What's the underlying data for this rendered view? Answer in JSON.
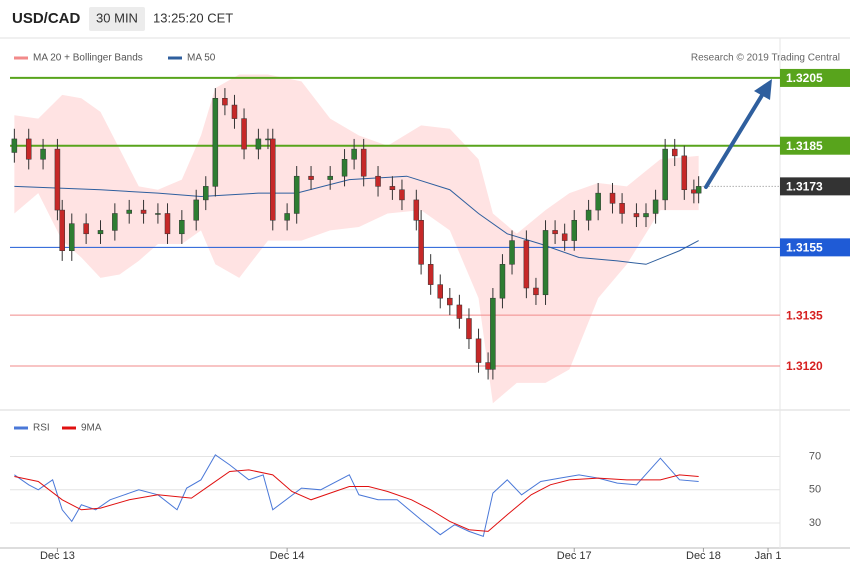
{
  "header": {
    "symbol": "USD/CAD",
    "interval": "30 MIN",
    "time": "13:25:20 CET",
    "credit": "Research © 2019 Trading Central"
  },
  "chart_data": [
    {
      "type": "candlestick",
      "xlim": [
        -3,
        160
      ],
      "ylim": [
        1.3107,
        1.3228
      ],
      "xticks": [
        {
          "value": 9,
          "label": "Dec 13"
        },
        {
          "value": 57,
          "label": "Dec 14"
        },
        {
          "value": 117,
          "label": "Dec 17"
        },
        {
          "value": 144,
          "label": "Dec 18"
        },
        {
          "value": 157.5,
          "label": "Jan 1"
        }
      ],
      "up_color": "#2e7d32",
      "down_color": "#c62828",
      "x": [
        0,
        3,
        6,
        9,
        10,
        12,
        15,
        18,
        21,
        24,
        27,
        30,
        32,
        35,
        38,
        40,
        42,
        44,
        46,
        48,
        51,
        53,
        54,
        57,
        59,
        62,
        66,
        69,
        71,
        73,
        76,
        79,
        81,
        84,
        85,
        87,
        89,
        91,
        93,
        95,
        97,
        99,
        100,
        102,
        104,
        107,
        109,
        111,
        113,
        115,
        117,
        120,
        122,
        125,
        127,
        130,
        132,
        134,
        136,
        138,
        140,
        142,
        143
      ],
      "open": [
        1.3183,
        1.3187,
        1.3181,
        1.3184,
        1.3166,
        1.3154,
        1.3162,
        1.3159,
        1.316,
        1.3165,
        1.3166,
        1.3165,
        1.3165,
        1.3159,
        1.3163,
        1.3169,
        1.3173,
        1.3199,
        1.3197,
        1.3193,
        1.3184,
        1.3187,
        1.3187,
        1.3163,
        1.3165,
        1.3176,
        1.3175,
        1.3176,
        1.3181,
        1.3184,
        1.3176,
        1.3173,
        1.3172,
        1.3169,
        1.3163,
        1.315,
        1.3144,
        1.314,
        1.3138,
        1.3134,
        1.3128,
        1.3121,
        1.3119,
        1.314,
        1.315,
        1.3157,
        1.3143,
        1.3141,
        1.316,
        1.3159,
        1.3157,
        1.3163,
        1.3166,
        1.3171,
        1.3168,
        1.3165,
        1.3164,
        1.3165,
        1.3169,
        1.3184,
        1.3182,
        1.3172,
        1.3171
      ],
      "high": [
        1.319,
        1.319,
        1.3187,
        1.3187,
        1.3169,
        1.3165,
        1.3165,
        1.3163,
        1.3168,
        1.3169,
        1.3169,
        1.3168,
        1.3168,
        1.3166,
        1.3172,
        1.3176,
        1.3202,
        1.3202,
        1.32,
        1.3196,
        1.319,
        1.319,
        1.319,
        1.3168,
        1.3179,
        1.3179,
        1.3179,
        1.3184,
        1.3187,
        1.3187,
        1.3179,
        1.3176,
        1.3175,
        1.3172,
        1.3166,
        1.3153,
        1.3147,
        1.3143,
        1.3141,
        1.3137,
        1.3131,
        1.3124,
        1.3143,
        1.3153,
        1.316,
        1.316,
        1.3146,
        1.3163,
        1.3163,
        1.3162,
        1.3166,
        1.3169,
        1.3174,
        1.3174,
        1.3171,
        1.3168,
        1.3168,
        1.3172,
        1.3187,
        1.3187,
        1.3185,
        1.3175,
        1.3176
      ],
      "low": [
        1.318,
        1.3178,
        1.3178,
        1.3163,
        1.3151,
        1.3151,
        1.3156,
        1.3156,
        1.3157,
        1.3162,
        1.3162,
        1.3162,
        1.3156,
        1.3156,
        1.316,
        1.3166,
        1.317,
        1.3194,
        1.319,
        1.3181,
        1.3181,
        1.3184,
        1.316,
        1.316,
        1.3162,
        1.3172,
        1.3172,
        1.3173,
        1.3178,
        1.3173,
        1.317,
        1.3169,
        1.3166,
        1.316,
        1.3147,
        1.3141,
        1.3137,
        1.3135,
        1.3131,
        1.3125,
        1.3118,
        1.3116,
        1.3116,
        1.3137,
        1.3147,
        1.314,
        1.3138,
        1.3138,
        1.3156,
        1.3154,
        1.3154,
        1.316,
        1.3163,
        1.3165,
        1.3162,
        1.3161,
        1.3161,
        1.3162,
        1.3166,
        1.3179,
        1.3169,
        1.3168,
        1.3168
      ],
      "close": [
        1.3187,
        1.3181,
        1.3184,
        1.3166,
        1.3154,
        1.3162,
        1.3159,
        1.316,
        1.3165,
        1.3166,
        1.3165,
        1.3165,
        1.3159,
        1.3163,
        1.3169,
        1.3173,
        1.3199,
        1.3197,
        1.3193,
        1.3184,
        1.3187,
        1.3187,
        1.3163,
        1.3165,
        1.3176,
        1.3175,
        1.3176,
        1.3181,
        1.3184,
        1.3176,
        1.3173,
        1.3172,
        1.3169,
        1.3163,
        1.315,
        1.3144,
        1.314,
        1.3138,
        1.3134,
        1.3128,
        1.3121,
        1.3119,
        1.314,
        1.315,
        1.3157,
        1.3143,
        1.3141,
        1.316,
        1.3159,
        1.3157,
        1.3163,
        1.3166,
        1.3171,
        1.3168,
        1.3165,
        1.3164,
        1.3165,
        1.3169,
        1.3184,
        1.3182,
        1.3172,
        1.3171,
        1.3173
      ],
      "bands": {
        "name": "MA 20 + Bollinger Bands",
        "color": "#f28a8a",
        "fill": "#ffe3e3",
        "x": [
          0,
          5,
          10,
          14,
          18,
          22,
          26,
          30,
          35,
          39,
          42,
          47,
          53,
          60,
          66,
          72,
          78,
          85,
          91,
          97,
          100,
          105,
          111,
          116,
          122,
          128,
          135,
          143
        ],
        "upper": [
          1.3194,
          1.3193,
          1.32,
          1.3199,
          1.3195,
          1.3184,
          1.3173,
          1.3172,
          1.3175,
          1.3188,
          1.3202,
          1.3206,
          1.3206,
          1.3204,
          1.3193,
          1.3188,
          1.3185,
          1.3191,
          1.319,
          1.3181,
          1.3165,
          1.3159,
          1.3166,
          1.3171,
          1.3174,
          1.3173,
          1.3181,
          1.3182
        ],
        "lower": [
          1.3165,
          1.3171,
          1.3157,
          1.3152,
          1.3146,
          1.3147,
          1.3151,
          1.3156,
          1.3156,
          1.316,
          1.315,
          1.3146,
          1.3157,
          1.3157,
          1.316,
          1.3161,
          1.3165,
          1.3166,
          1.316,
          1.314,
          1.3109,
          1.3115,
          1.3115,
          1.3119,
          1.314,
          1.315,
          1.3166,
          1.3166
        ]
      },
      "series": [
        {
          "name": "MA 50",
          "color": "#2f5f9e",
          "x": [
            0,
            18,
            30,
            39,
            51,
            59,
            70,
            82,
            91,
            97,
            103,
            110,
            118,
            126,
            132,
            139,
            143
          ],
          "values": [
            1.3173,
            1.3172,
            1.3171,
            1.317,
            1.3171,
            1.3171,
            1.3175,
            1.3176,
            1.3172,
            1.3165,
            1.3159,
            1.3156,
            1.3152,
            1.3151,
            1.315,
            1.3154,
            1.3157
          ]
        }
      ],
      "levels": [
        {
          "value": 1.3205,
          "color": "#58a41c",
          "style": "box"
        },
        {
          "value": 1.3185,
          "color": "#58a41c",
          "style": "box"
        },
        {
          "value": 1.3173,
          "color": "#333333",
          "style": "current"
        },
        {
          "value": 1.3155,
          "color": "#1f5bd6",
          "style": "box"
        },
        {
          "value": 1.3135,
          "color": "#d62020",
          "style": "text"
        },
        {
          "value": 1.312,
          "label": "1.3120",
          "color": "#d62020",
          "style": "text"
        }
      ]
    },
    {
      "type": "line",
      "xlim": [
        -3,
        160
      ],
      "ylim": [
        15,
        98
      ],
      "yticks": [
        30,
        50,
        70
      ],
      "grid": true,
      "series": [
        {
          "name": "RSI",
          "color": "#4a78d8",
          "x": [
            0,
            3,
            5,
            8,
            10,
            12,
            14,
            17,
            20,
            23,
            26,
            30,
            34,
            36,
            39,
            42,
            45,
            49,
            52,
            54,
            60,
            64,
            70,
            72,
            76,
            80,
            85,
            89,
            92,
            95,
            98,
            100,
            103,
            106,
            110,
            114,
            118,
            122,
            126,
            130,
            135,
            139,
            143
          ],
          "values": [
            59,
            53,
            50,
            56,
            38,
            31,
            41,
            38,
            44,
            47,
            50,
            47,
            38,
            51,
            56,
            71,
            65,
            56,
            59,
            38,
            51,
            50,
            59,
            47,
            44,
            44,
            32,
            23,
            29,
            25,
            22,
            48,
            56,
            47,
            55,
            57,
            59,
            57,
            54,
            53,
            69,
            56,
            55
          ]
        },
        {
          "name": "9MA",
          "color": "#e01010",
          "x": [
            0,
            5,
            10,
            14,
            18,
            24,
            30,
            37,
            41,
            45,
            49,
            54,
            58,
            62,
            66,
            70,
            74,
            78,
            83,
            87,
            91,
            95,
            99,
            103,
            108,
            112,
            116,
            122,
            128,
            135,
            139,
            143
          ],
          "values": [
            58,
            55,
            44,
            38,
            39,
            44,
            47,
            45,
            53,
            61,
            62,
            59,
            49,
            44,
            48,
            52,
            52,
            49,
            44,
            38,
            31,
            26,
            25,
            35,
            47,
            53,
            56,
            57,
            56,
            56,
            59,
            58
          ]
        }
      ]
    }
  ]
}
